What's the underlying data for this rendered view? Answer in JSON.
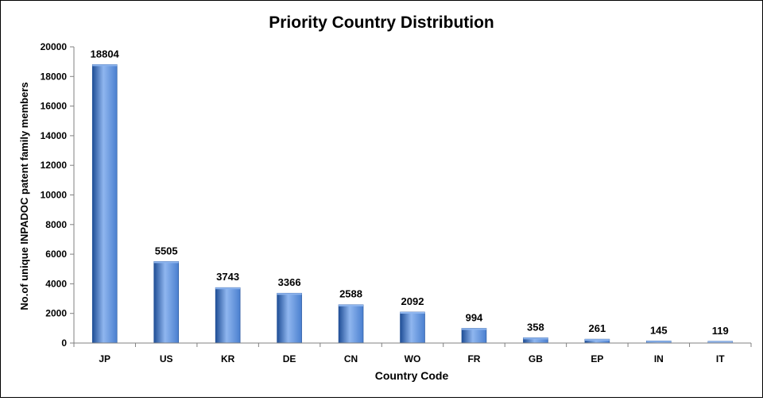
{
  "chart_data": {
    "type": "bar",
    "title": "Priority Country Distribution",
    "xlabel": "Country Code",
    "ylabel": "No.of unique INPADOC patent family members",
    "categories": [
      "JP",
      "US",
      "KR",
      "DE",
      "CN",
      "WO",
      "FR",
      "GB",
      "EP",
      "IN",
      "IT"
    ],
    "values": [
      18804,
      5505,
      3743,
      3366,
      2588,
      2092,
      994,
      358,
      261,
      145,
      119
    ],
    "ylim": [
      0,
      20000
    ],
    "yticks": [
      0,
      2000,
      4000,
      6000,
      8000,
      10000,
      12000,
      14000,
      16000,
      18000,
      20000
    ],
    "grid": false,
    "legend": "none",
    "bar_color": "#4a7fcf",
    "bar_color_dark": "#1f4e96",
    "bar_color_light": "#8fb6ef"
  }
}
